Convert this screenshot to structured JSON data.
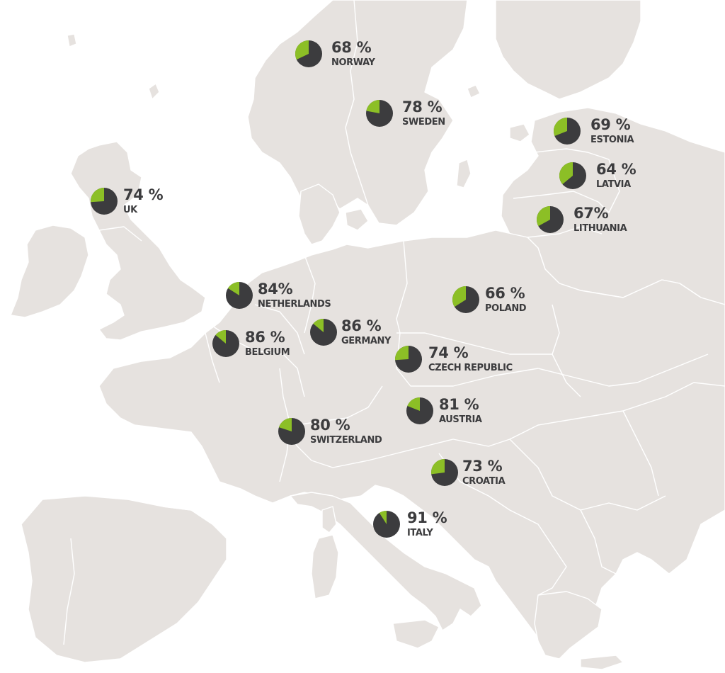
{
  "colors": {
    "land": "#e6e2df",
    "border": "#ffffff",
    "pie_share": "#8cbf26",
    "pie_rest": "#3c3c3e",
    "label": "#3c3c3e"
  },
  "markers": [
    {
      "id": "norway",
      "percent_label": "68 %",
      "country": "NORWAY",
      "value": 68
    },
    {
      "id": "sweden",
      "percent_label": "78 %",
      "country": "SWEDEN",
      "value": 78
    },
    {
      "id": "estonia",
      "percent_label": "69 %",
      "country": "ESTONIA",
      "value": 69
    },
    {
      "id": "latvia",
      "percent_label": "64 %",
      "country": "LATVIA",
      "value": 64
    },
    {
      "id": "lithuania",
      "percent_label": "67%",
      "country": "LITHUANIA",
      "value": 67
    },
    {
      "id": "uk",
      "percent_label": "74 %",
      "country": "UK",
      "value": 74
    },
    {
      "id": "netherlands",
      "percent_label": "84%",
      "country": "NETHERLANDS",
      "value": 84
    },
    {
      "id": "poland",
      "percent_label": "66 %",
      "country": "POLAND",
      "value": 66
    },
    {
      "id": "belgium",
      "percent_label": "86 %",
      "country": "BELGIUM",
      "value": 86
    },
    {
      "id": "germany",
      "percent_label": "86 %",
      "country": "GERMANY",
      "value": 86
    },
    {
      "id": "czech-republic",
      "percent_label": "74 %",
      "country": "CZECH REPUBLIC",
      "value": 74
    },
    {
      "id": "austria",
      "percent_label": "81 %",
      "country": "AUSTRIA",
      "value": 81
    },
    {
      "id": "switzerland",
      "percent_label": "80 %",
      "country": "SWITZERLAND",
      "value": 80
    },
    {
      "id": "croatia",
      "percent_label": "73 %",
      "country": "CROATIA",
      "value": 73
    },
    {
      "id": "italy",
      "percent_label": "91 %",
      "country": "ITALY",
      "value": 91
    }
  ]
}
